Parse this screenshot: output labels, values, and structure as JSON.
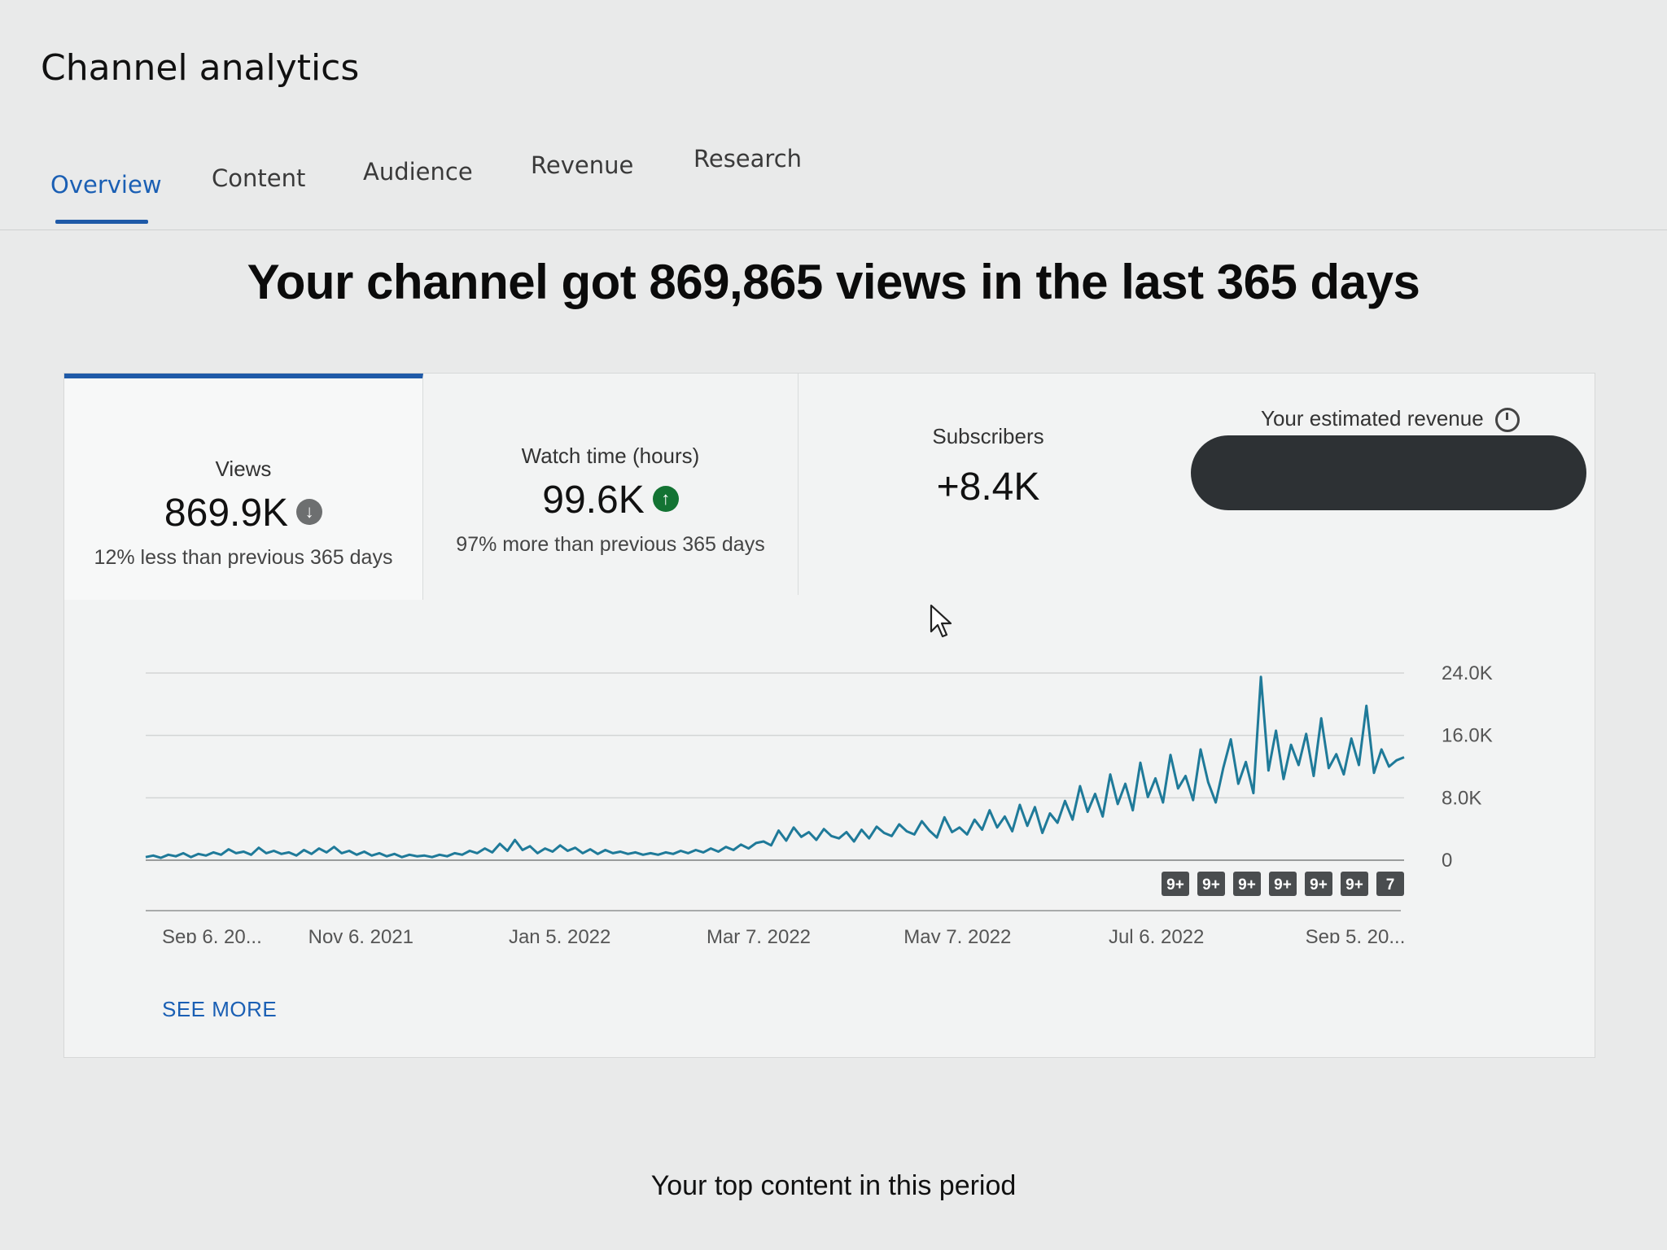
{
  "page": {
    "title": "Channel analytics",
    "headline": "Your channel got 869,865 views in the last 365 days"
  },
  "tabs": [
    {
      "label": "Overview",
      "active": true
    },
    {
      "label": "Content",
      "active": false
    },
    {
      "label": "Audience",
      "active": false
    },
    {
      "label": "Revenue",
      "active": false
    },
    {
      "label": "Research",
      "active": false
    }
  ],
  "metrics": [
    {
      "label": "Views",
      "value": "869.9K",
      "trend": "down",
      "trend_icon": "arrow-down-icon",
      "note": "12% less than previous 365 days"
    },
    {
      "label": "Watch time (hours)",
      "value": "99.6K",
      "trend": "up",
      "trend_icon": "arrow-up-icon",
      "note": "97% more than previous 365 days"
    },
    {
      "label": "Subscribers",
      "value": "+8.4K"
    },
    {
      "label": "Your estimated revenue",
      "value_hidden": true
    }
  ],
  "chart_data": {
    "type": "line",
    "series": [
      {
        "values": [
          400,
          600,
          300,
          700,
          500,
          900,
          400,
          800,
          600,
          1000,
          700,
          1400,
          900,
          1100,
          700,
          1600,
          900,
          1200,
          800,
          1000,
          600,
          1300,
          800,
          1500,
          1000,
          1700,
          900,
          1200,
          700,
          1100,
          600,
          900,
          500,
          800,
          400,
          700,
          500,
          600,
          400,
          700,
          500,
          900,
          700,
          1200,
          900,
          1500,
          1000,
          2100,
          1200,
          2600,
          1300,
          1800,
          900,
          1500,
          1100,
          1900,
          1200,
          1600,
          900,
          1400,
          800,
          1300,
          900,
          1100,
          800,
          1000,
          700,
          900,
          700,
          1000,
          800,
          1200,
          900,
          1300,
          1000,
          1500,
          1100,
          1700,
          1300,
          2000,
          1500,
          2200,
          2400,
          1900,
          3800,
          2500,
          4200,
          3000,
          3600,
          2600,
          4000,
          3100,
          2800,
          3600,
          2400,
          3900,
          2800,
          4300,
          3500,
          3100,
          4600,
          3700,
          3300,
          5000,
          3800,
          2900,
          5500,
          3600,
          4200,
          3300,
          5200,
          3900,
          6400,
          4200,
          5600,
          3700,
          7100,
          4400,
          6800,
          3500,
          6000,
          4800,
          7600,
          5200,
          9500,
          6200,
          8500,
          5600,
          11000,
          7200,
          9800,
          6400,
          12500,
          8100,
          10500,
          7400,
          13500,
          9200,
          10800,
          7700,
          14200,
          10000,
          7400,
          11800,
          15500,
          9800,
          12600,
          8600,
          23500,
          11500,
          16600,
          10400,
          14800,
          12200,
          16200,
          10800,
          18200,
          11800,
          13600,
          11000,
          15600,
          12200,
          19800,
          11200,
          14200,
          12000,
          12800,
          13200
        ]
      }
    ],
    "x_ticks": [
      "Sep 6, 20...",
      "Nov 6, 2021",
      "Jan 5, 2022",
      "Mar 7, 2022",
      "May 7, 2022",
      "Jul 6, 2022",
      "Sep 5, 20..."
    ],
    "y_ticks": [
      "0",
      "8.0K",
      "16.0K",
      "24.0K"
    ],
    "ylim": [
      0,
      24000
    ],
    "grid": true,
    "line_color": "#1f7a99",
    "badges": [
      "9+",
      "9+",
      "9+",
      "9+",
      "9+",
      "9+",
      "7"
    ]
  },
  "actions": {
    "see_more": "SEE MORE"
  },
  "sections": {
    "top_content_title": "Your top content in this period"
  }
}
